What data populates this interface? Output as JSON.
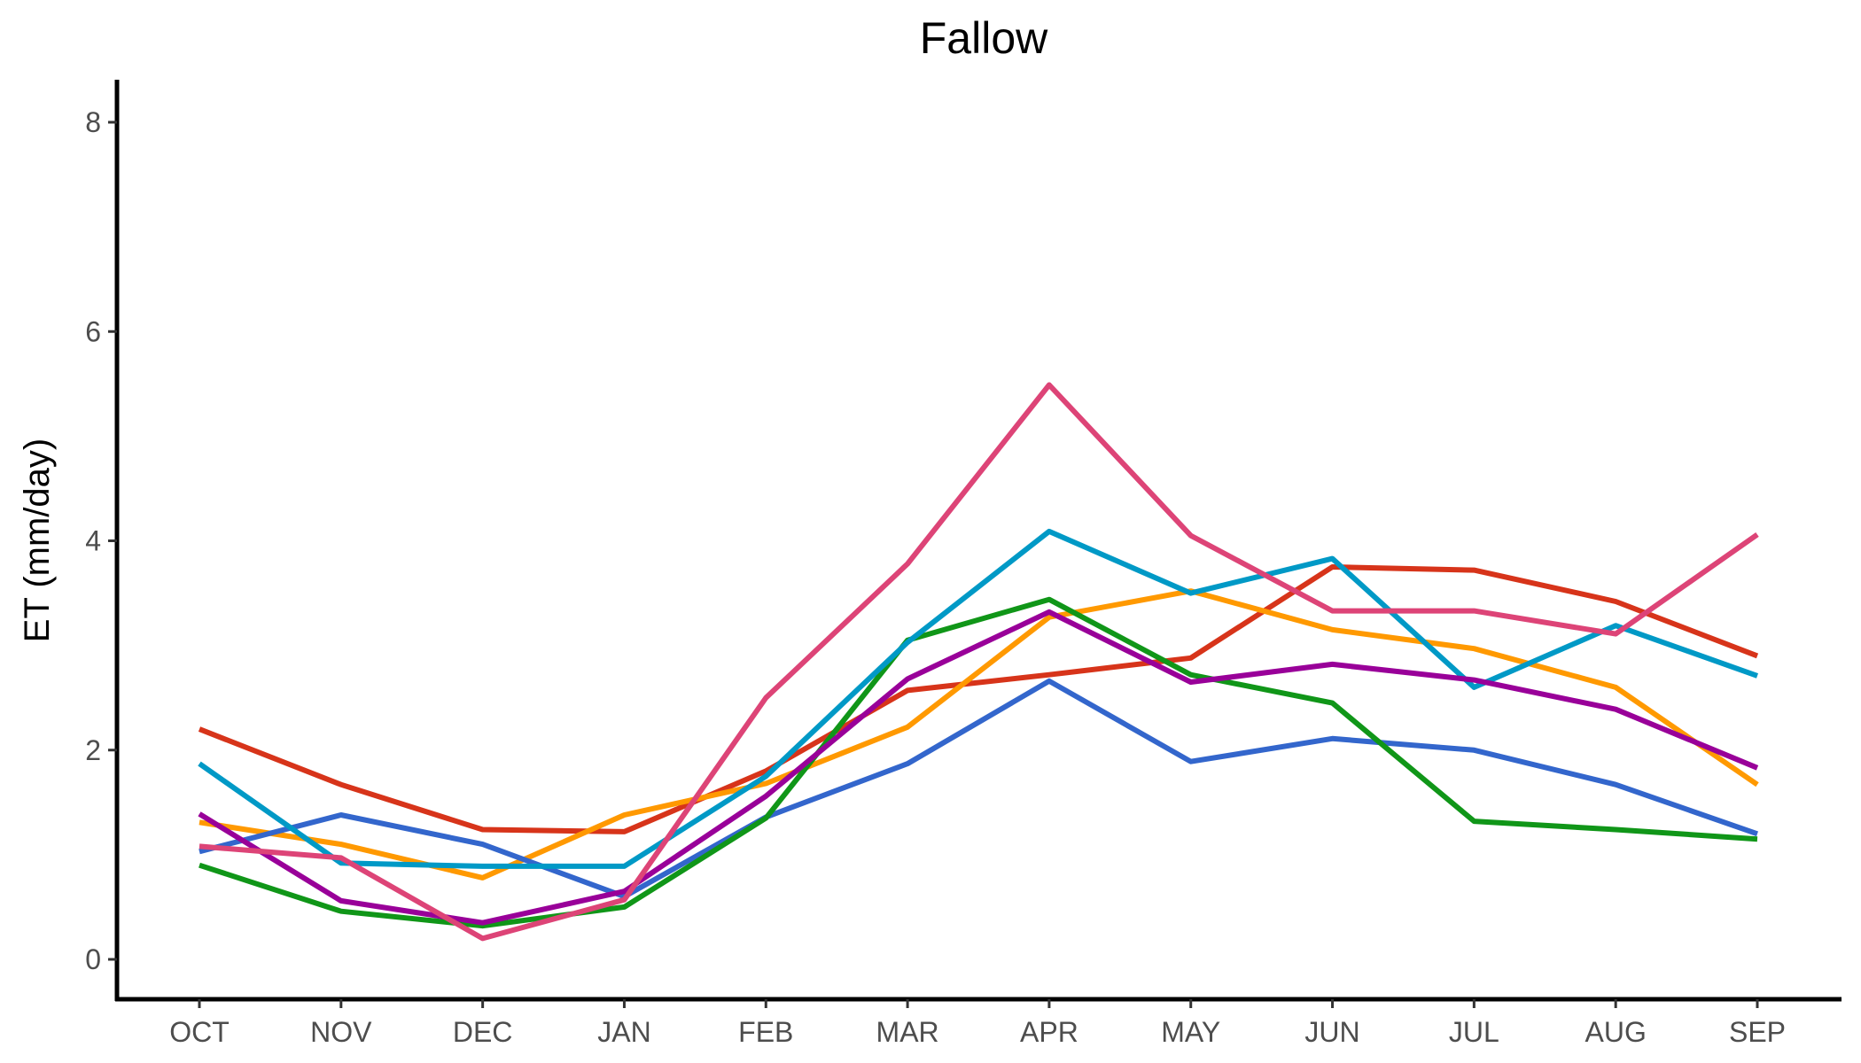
{
  "chart_data": {
    "type": "line",
    "title": "Fallow",
    "xlabel": "",
    "ylabel": "ET (mm/day)",
    "categories": [
      "OCT",
      "NOV",
      "DEC",
      "JAN",
      "FEB",
      "MAR",
      "APR",
      "MAY",
      "JUN",
      "JUL",
      "AUG",
      "SEP"
    ],
    "ylim": [
      0,
      8
    ],
    "yticks": [
      0,
      2,
      4,
      6,
      8
    ],
    "grid": false,
    "legend": "none",
    "series": [
      {
        "color": "#D7341A",
        "values": [
          2.2,
          1.67,
          1.24,
          1.22,
          1.8,
          2.57,
          2.72,
          2.88,
          3.75,
          3.72,
          3.42,
          2.9
        ]
      },
      {
        "color": "#FF9900",
        "values": [
          1.31,
          1.1,
          0.78,
          1.38,
          1.68,
          2.22,
          3.27,
          3.52,
          3.15,
          2.97,
          2.6,
          1.67
        ]
      },
      {
        "color": "#3366CC",
        "values": [
          1.03,
          1.38,
          1.1,
          0.6,
          1.36,
          1.87,
          2.66,
          1.89,
          2.11,
          2.0,
          1.67,
          1.2
        ]
      },
      {
        "color": "#109618",
        "values": [
          0.9,
          0.46,
          0.32,
          0.5,
          1.35,
          3.05,
          3.44,
          2.72,
          2.45,
          1.32,
          1.24,
          1.15
        ]
      },
      {
        "color": "#0099C6",
        "values": [
          1.87,
          0.92,
          0.89,
          0.89,
          1.75,
          3.03,
          4.09,
          3.5,
          3.83,
          2.6,
          3.19,
          2.71
        ]
      },
      {
        "color": "#990099",
        "values": [
          1.39,
          0.56,
          0.35,
          0.65,
          1.56,
          2.68,
          3.32,
          2.65,
          2.82,
          2.67,
          2.39,
          1.83
        ]
      },
      {
        "color": "#DD4477",
        "values": [
          1.08,
          0.97,
          0.2,
          0.57,
          2.5,
          3.78,
          5.49,
          4.05,
          3.33,
          3.33,
          3.11,
          4.06
        ]
      }
    ]
  }
}
